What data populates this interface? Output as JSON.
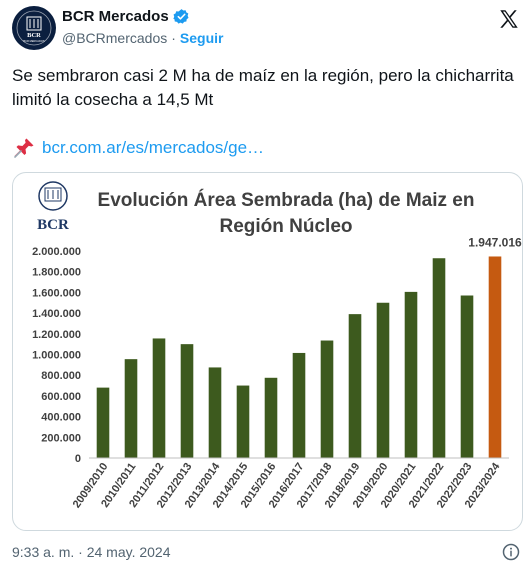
{
  "account": {
    "name": "BCR Mercados",
    "handle": "@BCRmercados",
    "separator": "·",
    "follow_label": "Seguir",
    "avatar_text": "BCR",
    "avatar_subtext": "BCR MERCADOS"
  },
  "tweet": {
    "text": "Se sembraron casi 2 M ha de maíz en la región, pero la chicharrita limitó la cosecha a 14,5 Mt",
    "link_text": "bcr.com.ar/es/mercados/ge…",
    "timestamp": "9:33 a. m. · 24 may. 2024"
  },
  "chart_logo_text": "BCR",
  "colors": {
    "bar": "#3d5a1e",
    "bar_highlight": "#c55a11",
    "link": "#1d9bf0",
    "verified": "#1d9bf0"
  },
  "chart_data": {
    "type": "bar",
    "title": "Evolución Área Sembrada (ha) de Maiz en Región Núcleo",
    "categories": [
      "2009/2010",
      "2010/2011",
      "2011/2012",
      "2012/2013",
      "2013/2014",
      "2014/2015",
      "2015/2016",
      "2016/2017",
      "2017/2018",
      "2018/2019",
      "2019/2020",
      "2020/2021",
      "2021/2022",
      "2022/2023",
      "2023/2024"
    ],
    "values": [
      680000,
      955000,
      1155000,
      1100000,
      875000,
      700000,
      775000,
      1015000,
      1135000,
      1390000,
      1500000,
      1605000,
      1930000,
      1570000,
      1947016
    ],
    "ylim": [
      0,
      2000000
    ],
    "yticks": [
      "0",
      "200.000",
      "400.000",
      "600.000",
      "800.000",
      "1.000.000",
      "1.200.000",
      "1.400.000",
      "1.600.000",
      "1.800.000",
      "2.000.000"
    ],
    "highlight_index": 14,
    "highlight_label": "1.947.016",
    "xlabel": "",
    "ylabel": "",
    "grid": false
  }
}
